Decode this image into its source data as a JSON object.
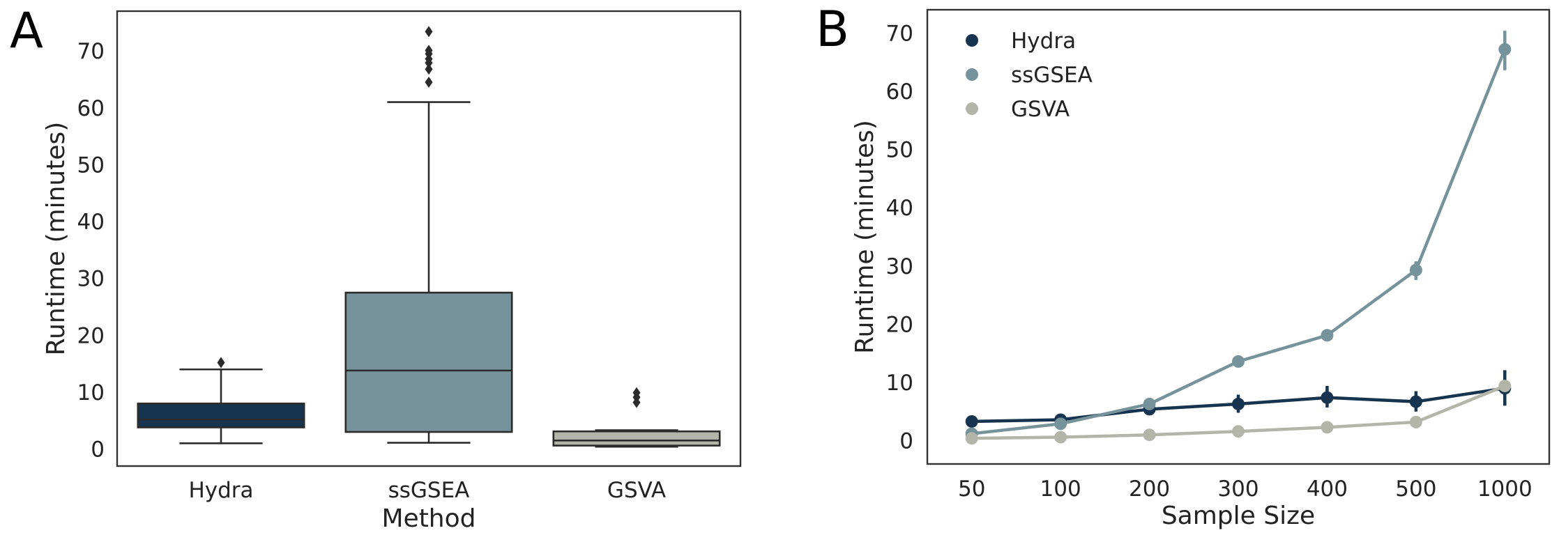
{
  "panels": {
    "a_label": "A",
    "b_label": "B"
  },
  "chart_data": [
    {
      "type": "box",
      "panel": "A",
      "xlabel": "Method",
      "ylabel": "Runtime (minutes)",
      "ylim": [
        -3,
        77
      ],
      "yticks": [
        0,
        10,
        20,
        30,
        40,
        50,
        60,
        70
      ],
      "grid": false,
      "categories": [
        "Hydra",
        "ssGSEA",
        "GSVA"
      ],
      "colors": [
        "#16344f",
        "#76939b",
        "#b3b5a8"
      ],
      "boxes": [
        {
          "whisker_low": 1.0,
          "q1": 3.8,
          "median": 5.2,
          "q3": 8.0,
          "whisker_high": 14.0,
          "outliers": [
            15.2
          ]
        },
        {
          "whisker_low": 1.1,
          "q1": 3.0,
          "median": 13.8,
          "q3": 27.5,
          "whisker_high": 61.0,
          "outliers": [
            64.5,
            66.8,
            67.9,
            68.6,
            69.5,
            70.1,
            73.4
          ]
        },
        {
          "whisker_low": 0.4,
          "q1": 0.6,
          "median": 1.5,
          "q3": 3.1,
          "whisker_high": 3.3,
          "outliers": [
            8.2,
            9.1,
            9.9
          ]
        }
      ]
    },
    {
      "type": "line",
      "panel": "B",
      "xlabel": "Sample Size",
      "ylabel": "Runtime (minutes)",
      "ylim": [
        -4,
        74
      ],
      "yticks": [
        0,
        10,
        20,
        30,
        40,
        50,
        60,
        70
      ],
      "grid": false,
      "legend": "top-left",
      "categories": [
        "50",
        "100",
        "200",
        "300",
        "400",
        "500",
        "1000"
      ],
      "series": [
        {
          "name": "Hydra",
          "color": "#16344f",
          "values": [
            3.3,
            3.6,
            5.4,
            6.3,
            7.4,
            6.7,
            9.0
          ],
          "err_low": [
            2.8,
            3.1,
            4.6,
            4.8,
            5.7,
            5.0,
            6.0
          ],
          "err_high": [
            3.9,
            4.2,
            6.1,
            7.9,
            9.4,
            8.5,
            12.1
          ]
        },
        {
          "name": "ssGSEA",
          "color": "#76939b",
          "values": [
            1.2,
            2.9,
            6.3,
            13.6,
            18.1,
            29.3,
            67.2
          ],
          "err_low": [
            1.0,
            2.6,
            5.9,
            13.2,
            17.7,
            27.6,
            63.6
          ],
          "err_high": [
            1.5,
            3.3,
            6.8,
            14.0,
            18.6,
            30.8,
            70.4
          ]
        },
        {
          "name": "GSVA",
          "color": "#b3b5a8",
          "values": [
            0.4,
            0.6,
            1.0,
            1.6,
            2.3,
            3.2,
            9.4
          ],
          "err_low": [
            0.3,
            0.5,
            0.9,
            1.4,
            2.1,
            2.9,
            8.8
          ],
          "err_high": [
            0.5,
            0.8,
            1.2,
            1.8,
            2.5,
            3.5,
            10.0
          ]
        }
      ]
    }
  ]
}
